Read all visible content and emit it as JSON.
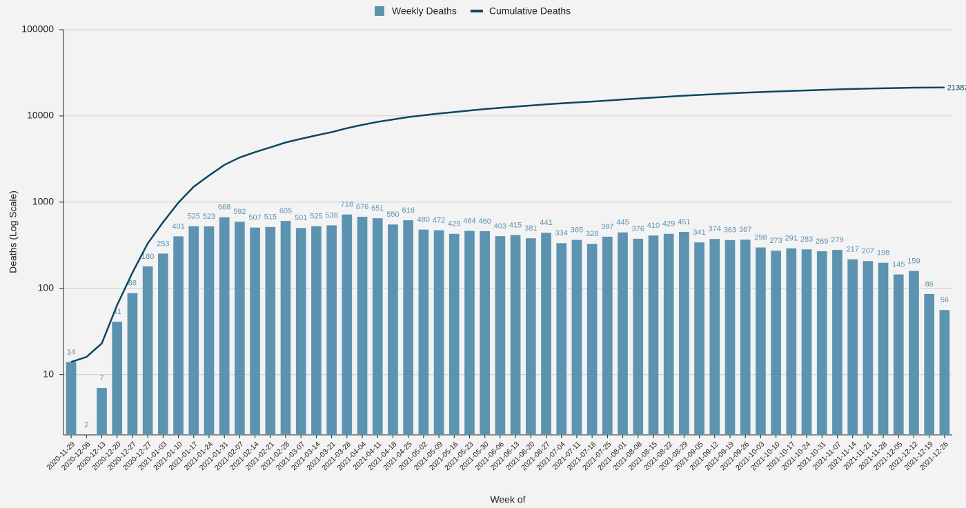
{
  "chart_data": {
    "type": "bar",
    "x_label": "Week of",
    "y_label": "Deaths (Log Scale)",
    "log_scale": true,
    "grid": true,
    "legend": "top",
    "categories": [
      "2020-11-29",
      "2020-12-06",
      "2020-12-13",
      "2020-12-20",
      "2020-12-27",
      "2020-12-27",
      "2021-01-03",
      "2021-01-10",
      "2021-01-17",
      "2021-01-24",
      "2021-01-31",
      "2021-02-07",
      "2021-02-14",
      "2021-02-21",
      "2021-02-28",
      "2021-03-07",
      "2021-03-14",
      "2021-03-21",
      "2021-03-28",
      "2021-04-04",
      "2021-04-11",
      "2021-04-18",
      "2021-04-25",
      "2021-05-02",
      "2021-05-09",
      "2021-05-16",
      "2021-05-23",
      "2021-05-30",
      "2021-06-06",
      "2021-06-13",
      "2021-06-20",
      "2021-06-27",
      "2021-07-04",
      "2021-07-11",
      "2021-07-18",
      "2021-07-25",
      "2021-08-01",
      "2021-08-08",
      "2021-08-15",
      "2021-08-22",
      "2021-08-29",
      "2021-09-05",
      "2021-09-12",
      "2021-09-19",
      "2021-09-26",
      "2021-10-03",
      "2021-10-10",
      "2021-10-17",
      "2021-10-24",
      "2021-10-31",
      "2021-11-07",
      "2021-11-14",
      "2021-11-21",
      "2021-11-28",
      "2021-12-05",
      "2021-12-12",
      "2021-12-19",
      "2021-12-26"
    ],
    "series": [
      {
        "name": "Weekly Deaths",
        "type": "bar",
        "color": "#5b93b0",
        "values": [
          14,
          2,
          7,
          41,
          88,
          180,
          253,
          401,
          525,
          523,
          668,
          592,
          507,
          515,
          605,
          501,
          525,
          538,
          718,
          676,
          651,
          550,
          616,
          480,
          472,
          429,
          464,
          460,
          403,
          415,
          381,
          441,
          334,
          365,
          328,
          397,
          445,
          376,
          410,
          429,
          451,
          341,
          374,
          363,
          367,
          298,
          273,
          291,
          283,
          269,
          279,
          217,
          207,
          198,
          145,
          159,
          86,
          56
        ]
      },
      {
        "name": "Cumulative Deaths",
        "type": "line",
        "color": "#0d4562",
        "values": [
          14,
          16,
          23,
          64,
          152,
          332,
          585,
          986,
          1511,
          2034,
          2702,
          3294,
          3801,
          4316,
          4921,
          5422,
          5947,
          6485,
          7203,
          7879,
          8530,
          9080,
          9696,
          10176,
          10648,
          11077,
          11541,
          12001,
          12404,
          12819,
          13200,
          13641,
          13975,
          14340,
          14668,
          15065,
          15510,
          15886,
          16296,
          16725,
          17176,
          17517,
          17891,
          18254,
          18621,
          18919,
          19192,
          19483,
          19766,
          20035,
          20314,
          20531,
          20738,
          20936,
          21081,
          21240,
          21326,
          21382
        ]
      }
    ],
    "ylim": [
      2,
      100000
    ],
    "yticks": [
      10,
      100,
      1000,
      10000,
      100000
    ]
  }
}
